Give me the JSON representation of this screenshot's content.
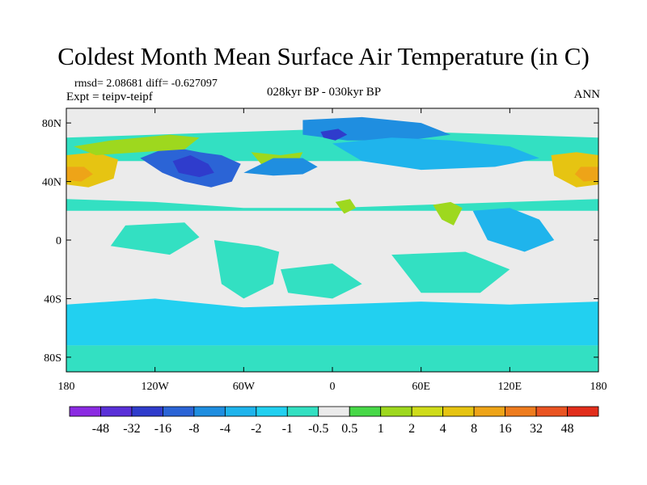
{
  "header": {
    "title": "Coldest Month Mean Surface Air Temperature (in C)",
    "stats": "rmsd= 2.08681 diff= -0.627097",
    "experiment": "Expt = teipv-teipf",
    "period": "028kyr BP - 030kyr BP",
    "season": "ANN"
  },
  "map": {
    "background_color": "#ebebeb",
    "lat_range": [
      -90,
      90
    ],
    "lon_range": [
      -180,
      180
    ],
    "lat_ticks": [
      {
        "value": 80,
        "label": "80N"
      },
      {
        "value": 40,
        "label": "40N"
      },
      {
        "value": 0,
        "label": "0"
      },
      {
        "value": -40,
        "label": "40S"
      },
      {
        "value": -80,
        "label": "80S"
      }
    ],
    "lon_ticks": [
      {
        "value": -180,
        "label": "180"
      },
      {
        "value": -120,
        "label": "120W"
      },
      {
        "value": -60,
        "label": "60W"
      },
      {
        "value": 0,
        "label": "0"
      },
      {
        "value": 60,
        "label": "60E"
      },
      {
        "value": 120,
        "label": "120E"
      },
      {
        "value": 180,
        "label": "180"
      }
    ]
  },
  "colorbar": {
    "colors": [
      "#8b2be2",
      "#5a30d8",
      "#2f3ccc",
      "#2b64d6",
      "#1f8ee0",
      "#1fb4ec",
      "#22d0f0",
      "#33e0c2",
      "#ebebeb",
      "#48d848",
      "#9ed81e",
      "#cfdc1a",
      "#e6c412",
      "#eea418",
      "#ee7c1e",
      "#ea5422",
      "#e22e1c"
    ],
    "labels": [
      "-48",
      "-32",
      "-16",
      "-8",
      "-4",
      "-2",
      "-1",
      "-0.5",
      "0.5",
      "1",
      "2",
      "4",
      "8",
      "16",
      "32",
      "48"
    ]
  },
  "regions": [
    {
      "name": "southern-ocean-band",
      "color": "#22d0f0",
      "points": [
        [
          -180,
          -44
        ],
        [
          -120,
          -40
        ],
        [
          -60,
          -46
        ],
        [
          0,
          -44
        ],
        [
          60,
          -42
        ],
        [
          120,
          -44
        ],
        [
          180,
          -42
        ],
        [
          180,
          -72
        ],
        [
          -180,
          -72
        ]
      ]
    },
    {
      "name": "antarctica",
      "color": "#33e0c2",
      "points": [
        [
          -180,
          -72
        ],
        [
          180,
          -72
        ],
        [
          180,
          -90
        ],
        [
          -180,
          -90
        ]
      ]
    },
    {
      "name": "north-pacific-band",
      "color": "#33e0c2",
      "points": [
        [
          -180,
          70
        ],
        [
          -120,
          72
        ],
        [
          -60,
          74
        ],
        [
          0,
          76
        ],
        [
          60,
          74
        ],
        [
          120,
          72
        ],
        [
          180,
          70
        ],
        [
          180,
          54
        ],
        [
          -180,
          54
        ]
      ]
    },
    {
      "name": "north-pacific-warm",
      "color": "#e6c412",
      "points": [
        [
          -180,
          58
        ],
        [
          -160,
          60
        ],
        [
          -145,
          55
        ],
        [
          -148,
          42
        ],
        [
          -165,
          36
        ],
        [
          -180,
          38
        ]
      ]
    },
    {
      "name": "north-pacific-warm-core",
      "color": "#eea418",
      "points": [
        [
          -180,
          50
        ],
        [
          -168,
          50
        ],
        [
          -162,
          45
        ],
        [
          -170,
          40
        ],
        [
          -180,
          41
        ]
      ]
    },
    {
      "name": "nw-pacific-warm",
      "color": "#e6c412",
      "points": [
        [
          148,
          58
        ],
        [
          165,
          60
        ],
        [
          180,
          58
        ],
        [
          180,
          38
        ],
        [
          165,
          36
        ],
        [
          150,
          44
        ]
      ]
    },
    {
      "name": "nw-pacific-warm-core",
      "color": "#eea418",
      "points": [
        [
          168,
          50
        ],
        [
          180,
          50
        ],
        [
          180,
          41
        ],
        [
          170,
          40
        ],
        [
          164,
          45
        ]
      ]
    },
    {
      "name": "north-america-cold",
      "color": "#2b64d6",
      "points": [
        [
          -130,
          56
        ],
        [
          -110,
          64
        ],
        [
          -90,
          60
        ],
        [
          -75,
          58
        ],
        [
          -62,
          52
        ],
        [
          -68,
          40
        ],
        [
          -82,
          36
        ],
        [
          -100,
          40
        ],
        [
          -115,
          46
        ]
      ]
    },
    {
      "name": "north-america-cold-core",
      "color": "#2f3ccc",
      "points": [
        [
          -108,
          54
        ],
        [
          -96,
          58
        ],
        [
          -84,
          52
        ],
        [
          -80,
          46
        ],
        [
          -90,
          43
        ],
        [
          -104,
          46
        ]
      ]
    },
    {
      "name": "greenland-warm",
      "color": "#9ed81e",
      "points": [
        [
          -55,
          60
        ],
        [
          -35,
          58
        ],
        [
          -20,
          60
        ],
        [
          -25,
          50
        ],
        [
          -45,
          48
        ]
      ]
    },
    {
      "name": "north-atlantic-cold",
      "color": "#1f8ee0",
      "points": [
        [
          -60,
          46
        ],
        [
          -40,
          44
        ],
        [
          -20,
          45
        ],
        [
          -10,
          50
        ],
        [
          -20,
          56
        ],
        [
          -40,
          56
        ]
      ]
    },
    {
      "name": "arctic-cold",
      "color": "#1f8ee0",
      "points": [
        [
          -20,
          82
        ],
        [
          20,
          84
        ],
        [
          60,
          80
        ],
        [
          80,
          72
        ],
        [
          50,
          68
        ],
        [
          10,
          68
        ],
        [
          -20,
          72
        ]
      ]
    },
    {
      "name": "eurasia-cold",
      "color": "#1fb4ec",
      "points": [
        [
          0,
          66
        ],
        [
          40,
          70
        ],
        [
          80,
          68
        ],
        [
          120,
          64
        ],
        [
          140,
          56
        ],
        [
          110,
          50
        ],
        [
          60,
          48
        ],
        [
          20,
          54
        ]
      ]
    },
    {
      "name": "arctic-cold-core",
      "color": "#2f3ccc",
      "points": [
        [
          -8,
          74
        ],
        [
          4,
          76
        ],
        [
          10,
          72
        ],
        [
          2,
          68
        ],
        [
          -6,
          70
        ]
      ]
    },
    {
      "name": "tropical-band",
      "color": "#33e0c2",
      "points": [
        [
          -180,
          28
        ],
        [
          -120,
          26
        ],
        [
          -60,
          22
        ],
        [
          0,
          22
        ],
        [
          60,
          24
        ],
        [
          120,
          26
        ],
        [
          180,
          28
        ],
        [
          180,
          20
        ],
        [
          -180,
          20
        ]
      ]
    },
    {
      "name": "india-warm",
      "color": "#9ed81e",
      "points": [
        [
          68,
          24
        ],
        [
          80,
          26
        ],
        [
          88,
          22
        ],
        [
          82,
          10
        ],
        [
          74,
          14
        ]
      ]
    },
    {
      "name": "africa-warm",
      "color": "#9ed81e",
      "points": [
        [
          2,
          26
        ],
        [
          12,
          28
        ],
        [
          16,
          22
        ],
        [
          8,
          18
        ]
      ]
    },
    {
      "name": "canada-warm",
      "color": "#9ed81e",
      "points": [
        [
          -175,
          64
        ],
        [
          -150,
          68
        ],
        [
          -130,
          70
        ],
        [
          -110,
          72
        ],
        [
          -90,
          70
        ],
        [
          -100,
          62
        ],
        [
          -130,
          60
        ],
        [
          -160,
          58
        ]
      ]
    },
    {
      "name": "south-america-band",
      "color": "#33e0c2",
      "points": [
        [
          -80,
          0
        ],
        [
          -50,
          -4
        ],
        [
          -36,
          -8
        ],
        [
          -40,
          -30
        ],
        [
          -60,
          -40
        ],
        [
          -75,
          -30
        ]
      ]
    },
    {
      "name": "south-atlantic",
      "color": "#33e0c2",
      "points": [
        [
          -35,
          -20
        ],
        [
          0,
          -16
        ],
        [
          20,
          -30
        ],
        [
          0,
          -40
        ],
        [
          -30,
          -36
        ]
      ]
    },
    {
      "name": "indian-ocean",
      "color": "#33e0c2",
      "points": [
        [
          40,
          -10
        ],
        [
          90,
          -8
        ],
        [
          120,
          -20
        ],
        [
          100,
          -36
        ],
        [
          60,
          -36
        ]
      ]
    },
    {
      "name": "southeast-asia",
      "color": "#1fb4ec",
      "points": [
        [
          95,
          20
        ],
        [
          120,
          22
        ],
        [
          140,
          14
        ],
        [
          150,
          0
        ],
        [
          130,
          -8
        ],
        [
          105,
          0
        ]
      ]
    },
    {
      "name": "east-pacific",
      "color": "#33e0c2",
      "points": [
        [
          -140,
          10
        ],
        [
          -100,
          12
        ],
        [
          -90,
          2
        ],
        [
          -110,
          -10
        ],
        [
          -150,
          -4
        ]
      ]
    }
  ]
}
